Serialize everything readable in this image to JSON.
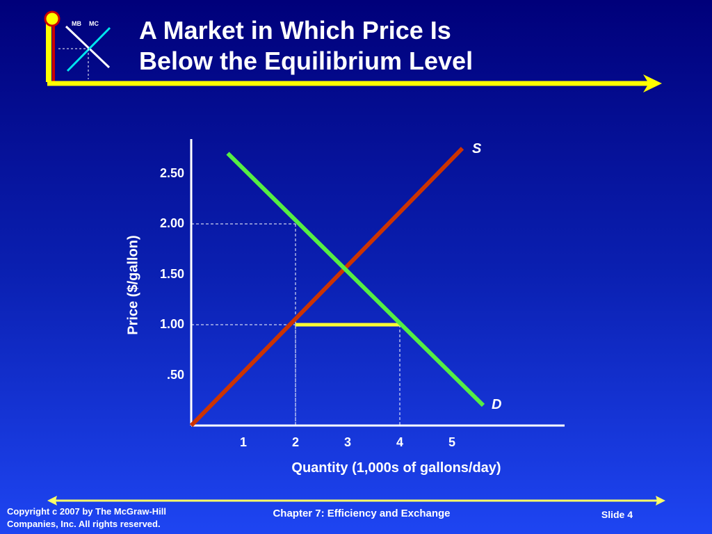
{
  "slide": {
    "title_line1": "A Market in Which Price Is",
    "title_line2": "Below the Equilibrium Level",
    "logo": {
      "mb_label": "MB",
      "mc_label": "MC"
    },
    "footer": {
      "copyright_line1": "Copyright c 2007 by The McGraw-Hill",
      "copyright_line2": "Companies, Inc.  All rights reserved.",
      "chapter": "Chapter 7: Efficiency and Exchange",
      "slide_number": "Slide 4"
    },
    "colors": {
      "background_top": "#00007a",
      "background_bottom": "#1e45f2",
      "title_bar": "#ffff00",
      "supply": "#cc3300",
      "demand": "#55ee44",
      "shortage": "#ffff33"
    }
  },
  "chart_data": {
    "type": "line",
    "xlabel": "Quantity (1,000s of gallons/day)",
    "ylabel": "Price ($/gallon)",
    "x_tick_labels": [
      "1",
      "2",
      "3",
      "4",
      "5"
    ],
    "x_ticks": [
      1,
      2,
      3,
      4,
      5
    ],
    "y_tick_labels": [
      ".50",
      "1.00",
      "1.50",
      "2.00",
      "2.50"
    ],
    "y_ticks": [
      0.5,
      1.0,
      1.5,
      2.0,
      2.5
    ],
    "xlim": [
      0,
      7.2
    ],
    "ylim": [
      0,
      2.85
    ],
    "series": [
      {
        "name": "S",
        "points": [
          [
            0,
            0
          ],
          [
            5.2,
            2.75
          ]
        ]
      },
      {
        "name": "D",
        "points": [
          [
            0.7,
            2.7
          ],
          [
            5.6,
            0.2
          ]
        ]
      }
    ],
    "price_line": {
      "y": 1.0,
      "x_from": 2,
      "x_to": 4
    },
    "guides": [
      {
        "price": 2.0,
        "quantity": 2
      },
      {
        "price": 1.0,
        "quantity": 2
      },
      {
        "price": 1.0,
        "quantity": 4
      }
    ],
    "grid": false,
    "legend": "none"
  }
}
